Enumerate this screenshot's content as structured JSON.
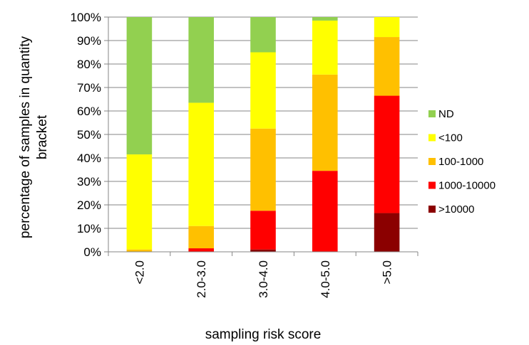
{
  "chart_data": {
    "type": "bar",
    "stacked": true,
    "normalized": true,
    "title": "",
    "xlabel": "sampling risk score",
    "ylabel": "percentage of samples in quantity bracket",
    "ylim": [
      0,
      100
    ],
    "yticks": [
      "0%",
      "10%",
      "20%",
      "30%",
      "40%",
      "50%",
      "60%",
      "70%",
      "80%",
      "90%",
      "100%"
    ],
    "grid": true,
    "legend_position": "right",
    "categories": [
      "<2.0",
      "2.0-3.0",
      "3.0-4.0",
      "4.0-5.0",
      ">5.0"
    ],
    "series": [
      {
        "name": ">10000",
        "color": "#8b0000",
        "values": [
          0,
          0,
          1,
          0,
          16.5
        ]
      },
      {
        "name": "1000-10000",
        "color": "#ff0000",
        "values": [
          0,
          1.5,
          16.5,
          34.5,
          50
        ]
      },
      {
        "name": "100-1000",
        "color": "#ffc000",
        "values": [
          1,
          9.5,
          35,
          41,
          25
        ]
      },
      {
        "name": "<100",
        "color": "#ffff00",
        "values": [
          40.5,
          52.5,
          32.5,
          23,
          8.5
        ]
      },
      {
        "name": "ND",
        "color": "#92d050",
        "values": [
          58.5,
          36.5,
          15,
          1.5,
          0
        ]
      }
    ],
    "legend_order": [
      "ND",
      "<100",
      "100-1000",
      "1000-10000",
      ">10000"
    ]
  }
}
